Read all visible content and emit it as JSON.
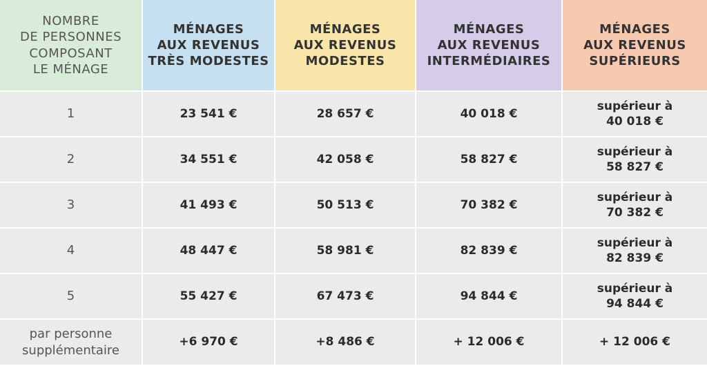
{
  "table": {
    "header": [
      [
        "NOMBRE",
        "DE PERSONNES",
        "COMPOSANT",
        "LE MÉNAGE"
      ],
      [
        "MÉNAGES",
        "AUX REVENUS",
        "TRÈS MODESTES"
      ],
      [
        "MÉNAGES",
        "AUX REVENUS",
        "MODESTES"
      ],
      [
        "MÉNAGES",
        "AUX REVENUS",
        "INTERMÉDIAIRES"
      ],
      [
        "MÉNAGES",
        "AUX REVENUS",
        "SUPÉRIEURS"
      ]
    ],
    "header_colors": [
      "#d9ecda",
      "#c6e0f1",
      "#f9e4aa",
      "#d4cce9",
      "#f8c9b1"
    ],
    "rows": [
      [
        [
          "1"
        ],
        [
          "23 541 €"
        ],
        [
          "28 657 €"
        ],
        [
          "40 018 €"
        ],
        [
          "supérieur à",
          "40 018 €"
        ]
      ],
      [
        [
          "2"
        ],
        [
          "34 551 €"
        ],
        [
          "42 058 €"
        ],
        [
          "58 827 €"
        ],
        [
          "supérieur à",
          "58 827 €"
        ]
      ],
      [
        [
          "3"
        ],
        [
          "41 493 €"
        ],
        [
          "50 513 €"
        ],
        [
          "70 382 €"
        ],
        [
          "supérieur à",
          "70 382 €"
        ]
      ],
      [
        [
          "4"
        ],
        [
          "48 447 €"
        ],
        [
          "58 981 €"
        ],
        [
          "82 839 €"
        ],
        [
          "supérieur à",
          "82 839 €"
        ]
      ],
      [
        [
          "5"
        ],
        [
          "55 427 €"
        ],
        [
          "67 473 €"
        ],
        [
          "94 844 €"
        ],
        [
          "supérieur à",
          "94 844 €"
        ]
      ],
      [
        [
          "par personne",
          "supplémentaire"
        ],
        [
          "+6 970 €"
        ],
        [
          "+8 486 €"
        ],
        [
          "+ 12 006 €"
        ],
        [
          "+ 12 006 €"
        ]
      ]
    ]
  }
}
